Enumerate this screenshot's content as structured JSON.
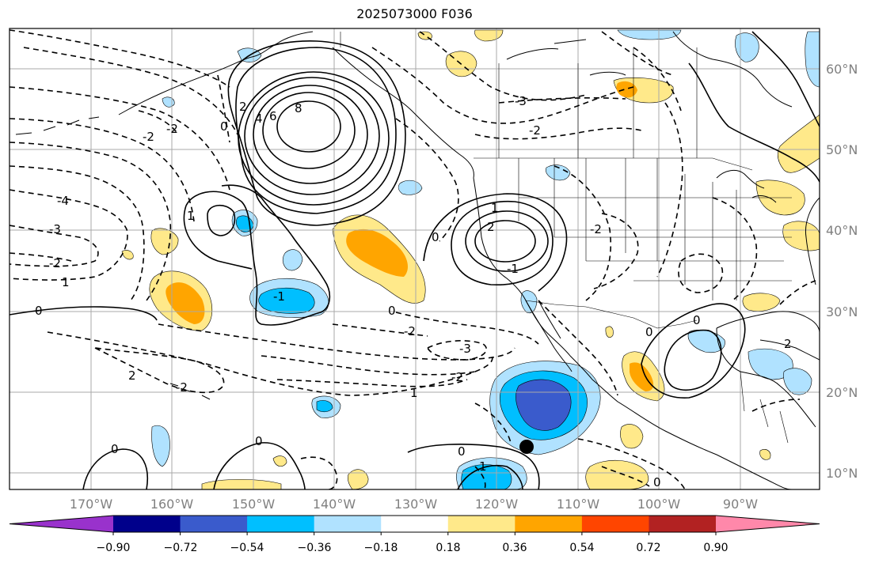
{
  "title": "2025073000 F036",
  "lon_labels": [
    "170°W",
    "160°W",
    "150°W",
    "140°W",
    "130°W",
    "120°W",
    "110°W",
    "100°W",
    "90°W"
  ],
  "lat_labels": [
    "60°N",
    "50°N",
    "40°N",
    "30°N",
    "20°N",
    "10°N"
  ],
  "colorbar": {
    "ticks": [
      "−0.90",
      "−0.72",
      "−0.54",
      "−0.36",
      "−0.18",
      "0.18",
      "0.36",
      "0.54",
      "0.72",
      "0.90"
    ],
    "colors": [
      "#9932cc",
      "#00008b",
      "#3a5bcc",
      "#00bfff",
      "#b0e2ff",
      "#ffffff",
      "#ffe98a",
      "#ffa500",
      "#ff4500",
      "#b22222",
      "#ff88aa"
    ]
  },
  "contour_labels": [
    "-2",
    "-2",
    "0",
    "2",
    "4",
    "6",
    "8",
    "-3",
    "-2",
    "-4",
    "-3",
    "-2",
    "1",
    "0",
    "2",
    "1",
    "-1",
    "0",
    "1",
    "2",
    "0",
    "-2",
    "-3",
    "-2",
    "1",
    "-2",
    "0",
    "0",
    "0",
    "1",
    "-1",
    "-2",
    "0",
    "0",
    "2",
    "0"
  ],
  "marker": "storm-center-dot"
}
